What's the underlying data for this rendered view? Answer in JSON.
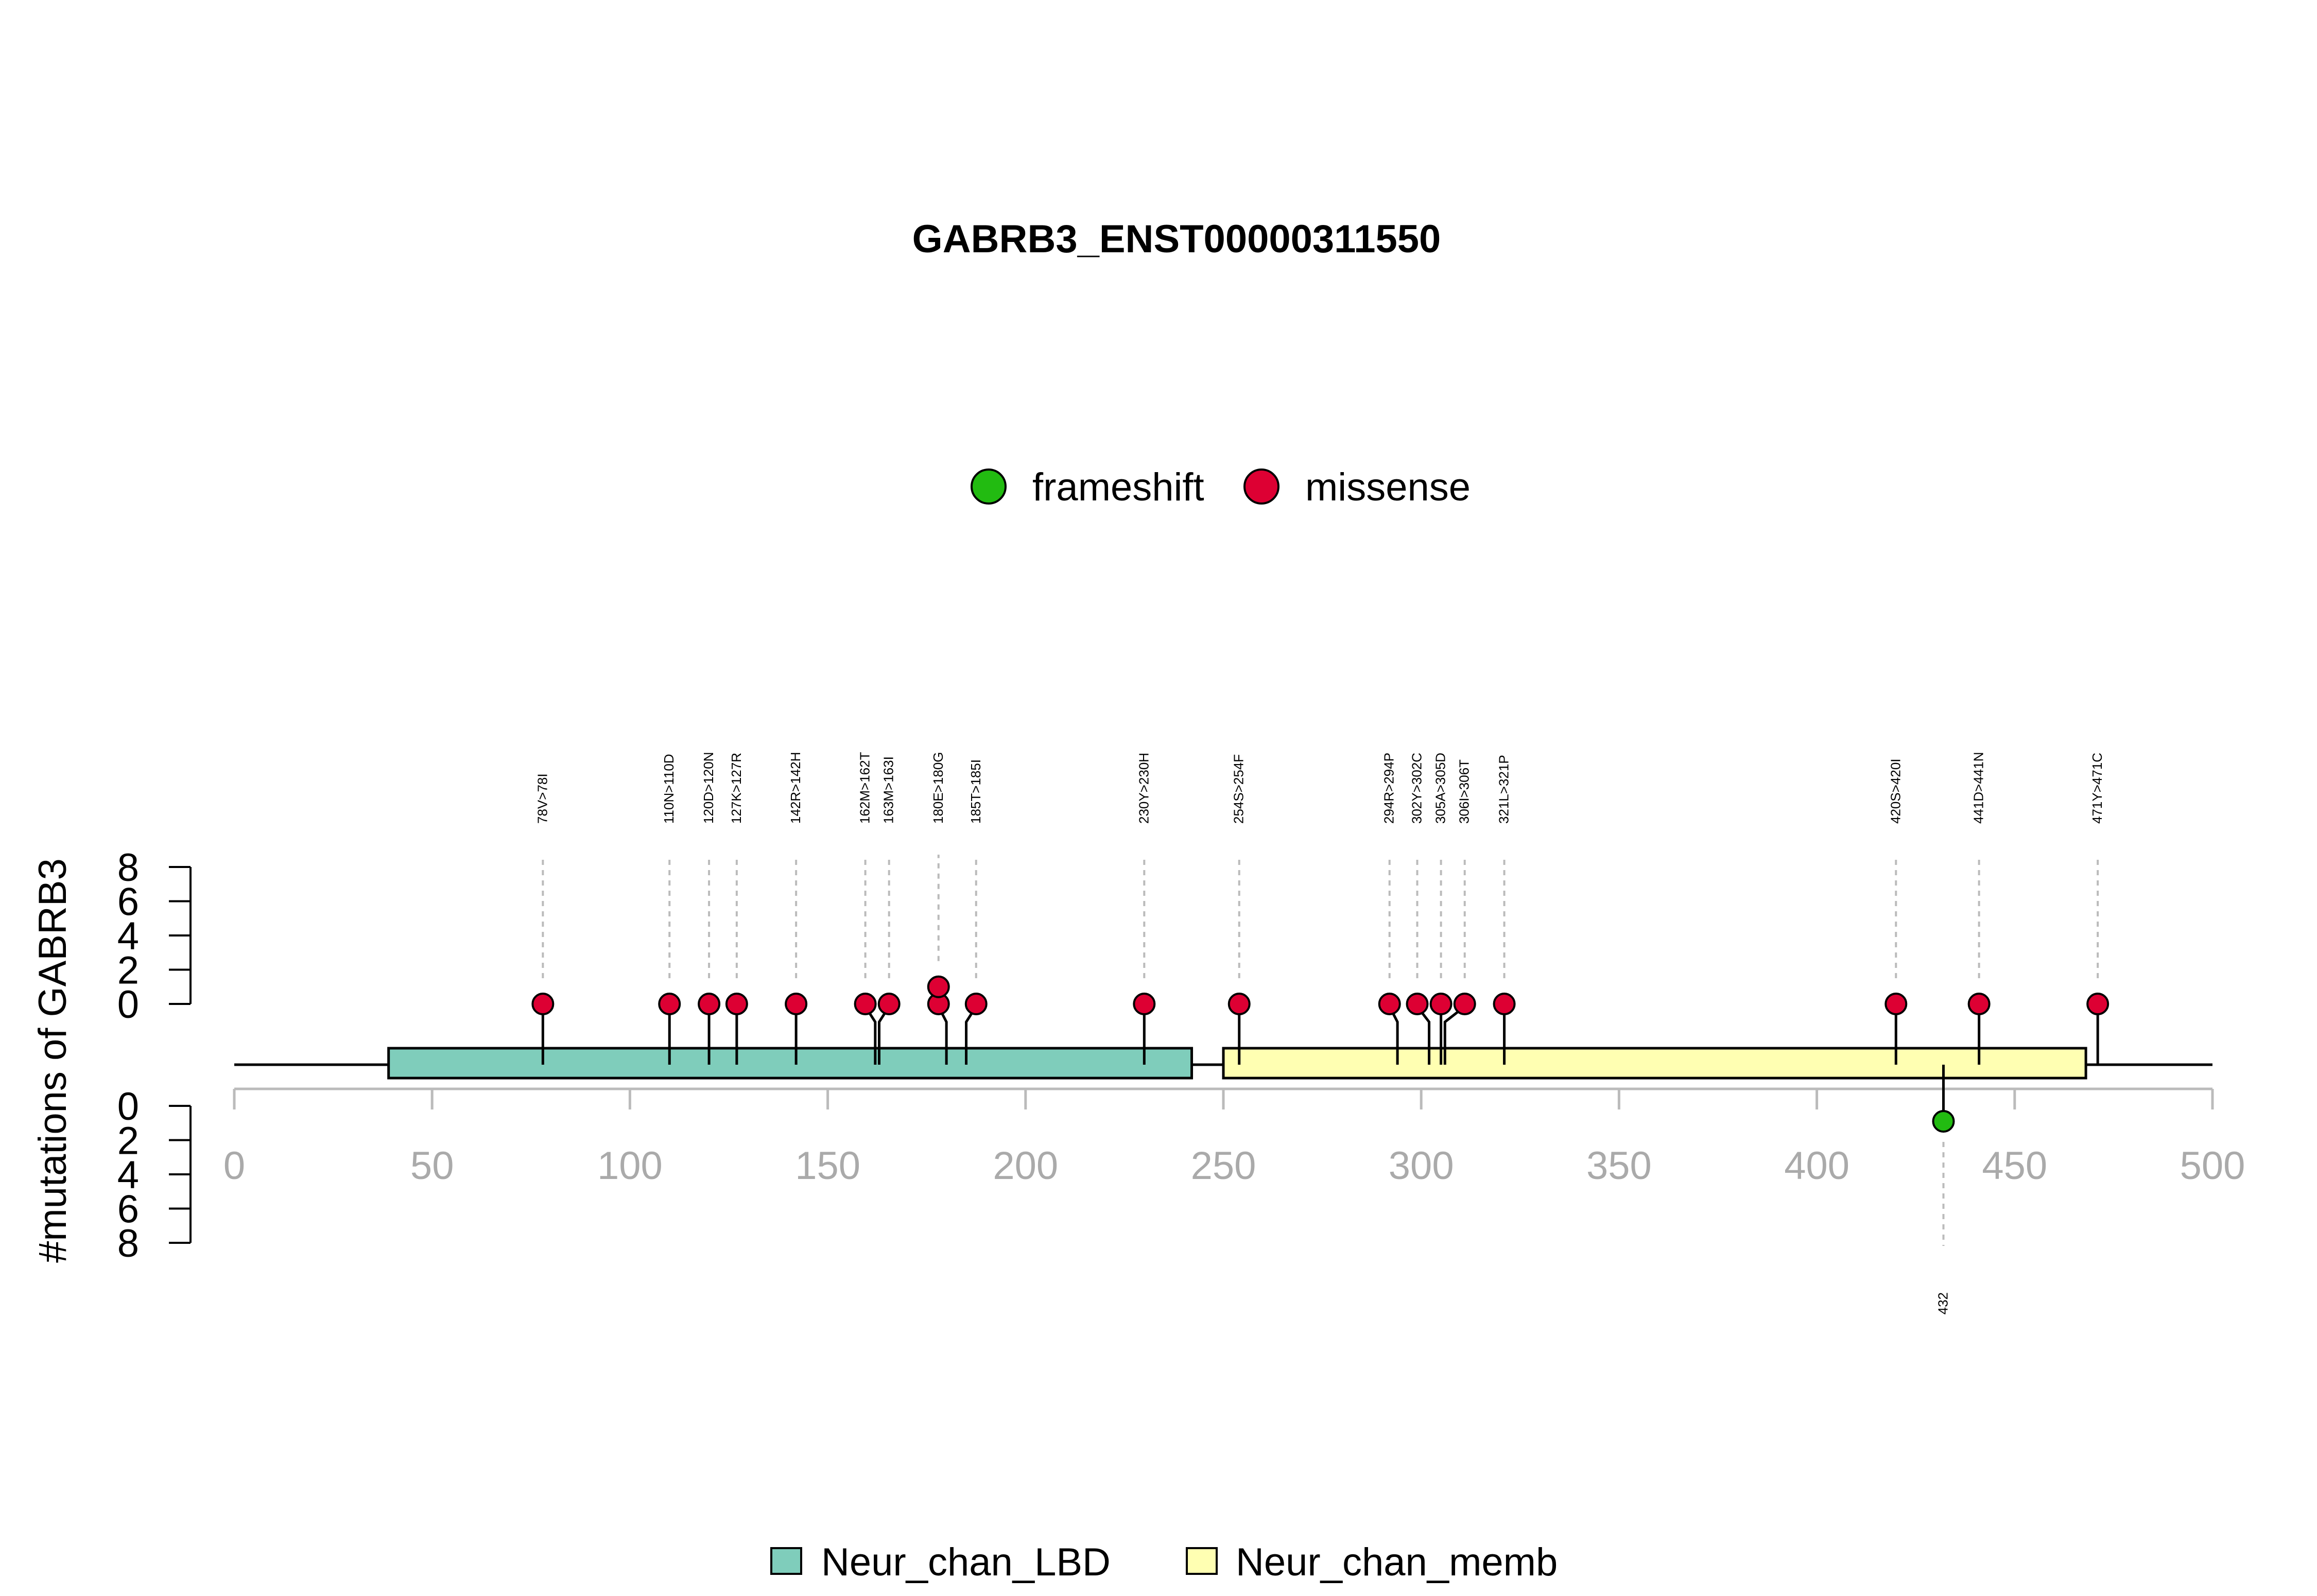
{
  "chart_data": {
    "type": "lollipop",
    "title": "GABRB3_ENST00000311550",
    "ylabel": "#mutations of GABRB3",
    "xlim": [
      0,
      500
    ],
    "x_ticks": [
      0,
      50,
      100,
      150,
      200,
      250,
      300,
      350,
      400,
      450,
      500
    ],
    "y_ticks": [
      0,
      2,
      4,
      6,
      8
    ],
    "legend_top": [
      {
        "name": "frameshift",
        "color": "#22BB11"
      },
      {
        "name": "missense",
        "color": "#DD0033"
      }
    ],
    "legend_bottom": [
      {
        "name": "Neur_chan_LBD",
        "color": "#7FCDBB"
      },
      {
        "name": "Neur_chan_memb",
        "color": "#FFFFB2"
      }
    ],
    "domains": [
      {
        "name": "Neur_chan_LBD",
        "start": 39,
        "end": 242,
        "color": "#7FCDBB"
      },
      {
        "name": "Neur_chan_memb",
        "start": 250,
        "end": 468,
        "color": "#FFFFB2"
      }
    ],
    "mutations_top": [
      {
        "label": "78V>78I",
        "pos": 78,
        "display": 78,
        "count": 1,
        "type": "missense"
      },
      {
        "label": "110N>110D",
        "pos": 110,
        "display": 110,
        "count": 1,
        "type": "missense"
      },
      {
        "label": "120D>120N",
        "pos": 120,
        "display": 120,
        "count": 1,
        "type": "missense"
      },
      {
        "label": "127K>127R",
        "pos": 127,
        "display": 127,
        "count": 1,
        "type": "missense"
      },
      {
        "label": "142R>142H",
        "pos": 142,
        "display": 142,
        "count": 1,
        "type": "missense"
      },
      {
        "label": "162M>162T",
        "pos": 162,
        "display": 159.5,
        "count": 1,
        "type": "missense"
      },
      {
        "label": "163M>163I",
        "pos": 163,
        "display": 165.5,
        "count": 1,
        "type": "missense"
      },
      {
        "label": "180E>180G",
        "pos": 180,
        "display": 178,
        "count": 2,
        "type": "missense"
      },
      {
        "label": "185T>185I",
        "pos": 185,
        "display": 187.5,
        "count": 1,
        "type": "missense"
      },
      {
        "label": "230Y>230H",
        "pos": 230,
        "display": 230,
        "count": 1,
        "type": "missense"
      },
      {
        "label": "254S>254F",
        "pos": 254,
        "display": 254,
        "count": 1,
        "type": "missense"
      },
      {
        "label": "294R>294P",
        "pos": 294,
        "display": 292,
        "count": 1,
        "type": "missense"
      },
      {
        "label": "302Y>302C",
        "pos": 302,
        "display": 299,
        "count": 1,
        "type": "missense"
      },
      {
        "label": "305A>305D",
        "pos": 305,
        "display": 305,
        "count": 1,
        "type": "missense"
      },
      {
        "label": "306I>306T",
        "pos": 306,
        "display": 311,
        "count": 1,
        "type": "missense"
      },
      {
        "label": "321L>321P",
        "pos": 321,
        "display": 321,
        "count": 1,
        "type": "missense"
      },
      {
        "label": "420S>420I",
        "pos": 420,
        "display": 420,
        "count": 1,
        "type": "missense"
      },
      {
        "label": "441D>441N",
        "pos": 441,
        "display": 441,
        "count": 1,
        "type": "missense"
      },
      {
        "label": "471Y>471C",
        "pos": 471,
        "display": 471,
        "count": 1,
        "type": "missense"
      }
    ],
    "mutations_bottom": [
      {
        "label": "432",
        "pos": 432,
        "display": 432,
        "count": 1,
        "type": "frameshift"
      }
    ]
  }
}
